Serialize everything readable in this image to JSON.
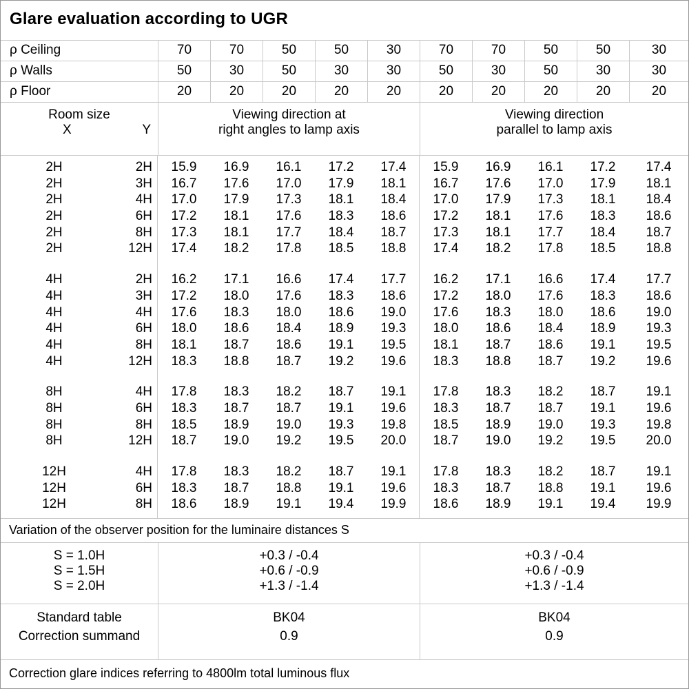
{
  "title": "Glare evaluation according to UGR",
  "colors": {
    "grid_line": "#c9c9c9",
    "outer_border": "#969696",
    "text": "#000000",
    "background": "#ffffff"
  },
  "reflectances": {
    "rows": [
      {
        "label": "ρ Ceiling",
        "values": [
          "70",
          "70",
          "50",
          "50",
          "30",
          "70",
          "70",
          "50",
          "50",
          "30"
        ]
      },
      {
        "label": "ρ Walls",
        "values": [
          "50",
          "30",
          "50",
          "30",
          "30",
          "50",
          "30",
          "50",
          "30",
          "30"
        ]
      },
      {
        "label": "ρ Floor",
        "values": [
          "20",
          "20",
          "20",
          "20",
          "20",
          "20",
          "20",
          "20",
          "20",
          "20"
        ]
      }
    ]
  },
  "table_header": {
    "room_size": "Room size",
    "x": "X",
    "y": "Y",
    "group_left": [
      "Viewing direction at",
      "right angles to lamp axis"
    ],
    "group_right": [
      "Viewing direction",
      "parallel to lamp axis"
    ]
  },
  "ugr_groups": [
    {
      "rows": [
        {
          "x": "2H",
          "y": "2H",
          "left": [
            "15.9",
            "16.9",
            "16.1",
            "17.2",
            "17.4"
          ],
          "right": [
            "15.9",
            "16.9",
            "16.1",
            "17.2",
            "17.4"
          ]
        },
        {
          "x": "2H",
          "y": "3H",
          "left": [
            "16.7",
            "17.6",
            "17.0",
            "17.9",
            "18.1"
          ],
          "right": [
            "16.7",
            "17.6",
            "17.0",
            "17.9",
            "18.1"
          ]
        },
        {
          "x": "2H",
          "y": "4H",
          "left": [
            "17.0",
            "17.9",
            "17.3",
            "18.1",
            "18.4"
          ],
          "right": [
            "17.0",
            "17.9",
            "17.3",
            "18.1",
            "18.4"
          ]
        },
        {
          "x": "2H",
          "y": "6H",
          "left": [
            "17.2",
            "18.1",
            "17.6",
            "18.3",
            "18.6"
          ],
          "right": [
            "17.2",
            "18.1",
            "17.6",
            "18.3",
            "18.6"
          ]
        },
        {
          "x": "2H",
          "y": "8H",
          "left": [
            "17.3",
            "18.1",
            "17.7",
            "18.4",
            "18.7"
          ],
          "right": [
            "17.3",
            "18.1",
            "17.7",
            "18.4",
            "18.7"
          ]
        },
        {
          "x": "2H",
          "y": "12H",
          "left": [
            "17.4",
            "18.2",
            "17.8",
            "18.5",
            "18.8"
          ],
          "right": [
            "17.4",
            "18.2",
            "17.8",
            "18.5",
            "18.8"
          ]
        }
      ]
    },
    {
      "rows": [
        {
          "x": "4H",
          "y": "2H",
          "left": [
            "16.2",
            "17.1",
            "16.6",
            "17.4",
            "17.7"
          ],
          "right": [
            "16.2",
            "17.1",
            "16.6",
            "17.4",
            "17.7"
          ]
        },
        {
          "x": "4H",
          "y": "3H",
          "left": [
            "17.2",
            "18.0",
            "17.6",
            "18.3",
            "18.6"
          ],
          "right": [
            "17.2",
            "18.0",
            "17.6",
            "18.3",
            "18.6"
          ]
        },
        {
          "x": "4H",
          "y": "4H",
          "left": [
            "17.6",
            "18.3",
            "18.0",
            "18.6",
            "19.0"
          ],
          "right": [
            "17.6",
            "18.3",
            "18.0",
            "18.6",
            "19.0"
          ]
        },
        {
          "x": "4H",
          "y": "6H",
          "left": [
            "18.0",
            "18.6",
            "18.4",
            "18.9",
            "19.3"
          ],
          "right": [
            "18.0",
            "18.6",
            "18.4",
            "18.9",
            "19.3"
          ]
        },
        {
          "x": "4H",
          "y": "8H",
          "left": [
            "18.1",
            "18.7",
            "18.6",
            "19.1",
            "19.5"
          ],
          "right": [
            "18.1",
            "18.7",
            "18.6",
            "19.1",
            "19.5"
          ]
        },
        {
          "x": "4H",
          "y": "12H",
          "left": [
            "18.3",
            "18.8",
            "18.7",
            "19.2",
            "19.6"
          ],
          "right": [
            "18.3",
            "18.8",
            "18.7",
            "19.2",
            "19.6"
          ]
        }
      ]
    },
    {
      "rows": [
        {
          "x": "8H",
          "y": "4H",
          "left": [
            "17.8",
            "18.3",
            "18.2",
            "18.7",
            "19.1"
          ],
          "right": [
            "17.8",
            "18.3",
            "18.2",
            "18.7",
            "19.1"
          ]
        },
        {
          "x": "8H",
          "y": "6H",
          "left": [
            "18.3",
            "18.7",
            "18.7",
            "19.1",
            "19.6"
          ],
          "right": [
            "18.3",
            "18.7",
            "18.7",
            "19.1",
            "19.6"
          ]
        },
        {
          "x": "8H",
          "y": "8H",
          "left": [
            "18.5",
            "18.9",
            "19.0",
            "19.3",
            "19.8"
          ],
          "right": [
            "18.5",
            "18.9",
            "19.0",
            "19.3",
            "19.8"
          ]
        },
        {
          "x": "8H",
          "y": "12H",
          "left": [
            "18.7",
            "19.0",
            "19.2",
            "19.5",
            "20.0"
          ],
          "right": [
            "18.7",
            "19.0",
            "19.2",
            "19.5",
            "20.0"
          ]
        }
      ]
    },
    {
      "rows": [
        {
          "x": "12H",
          "y": "4H",
          "left": [
            "17.8",
            "18.3",
            "18.2",
            "18.7",
            "19.1"
          ],
          "right": [
            "17.8",
            "18.3",
            "18.2",
            "18.7",
            "19.1"
          ]
        },
        {
          "x": "12H",
          "y": "6H",
          "left": [
            "18.3",
            "18.7",
            "18.8",
            "19.1",
            "19.6"
          ],
          "right": [
            "18.3",
            "18.7",
            "18.8",
            "19.1",
            "19.6"
          ]
        },
        {
          "x": "12H",
          "y": "8H",
          "left": [
            "18.6",
            "18.9",
            "19.1",
            "19.4",
            "19.9"
          ],
          "right": [
            "18.6",
            "18.9",
            "19.1",
            "19.4",
            "19.9"
          ]
        }
      ]
    }
  ],
  "variation_note": "Variation of the observer position for the luminaire distances S",
  "spacing_correction": {
    "labels": [
      "S = 1.0H",
      "S = 1.5H",
      "S = 2.0H"
    ],
    "left": [
      "+0.3 / -0.4",
      "+0.6 / -0.9",
      "+1.3 / -1.4"
    ],
    "right": [
      "+0.3 / -0.4",
      "+0.6 / -0.9",
      "+1.3 / -1.4"
    ]
  },
  "standard": {
    "labels": [
      "Standard table",
      "Correction summand"
    ],
    "left": [
      "BK04",
      "0.9"
    ],
    "right": [
      "BK04",
      "0.9"
    ]
  },
  "footer_note": "Correction glare indices referring to 4800lm total luminous flux"
}
